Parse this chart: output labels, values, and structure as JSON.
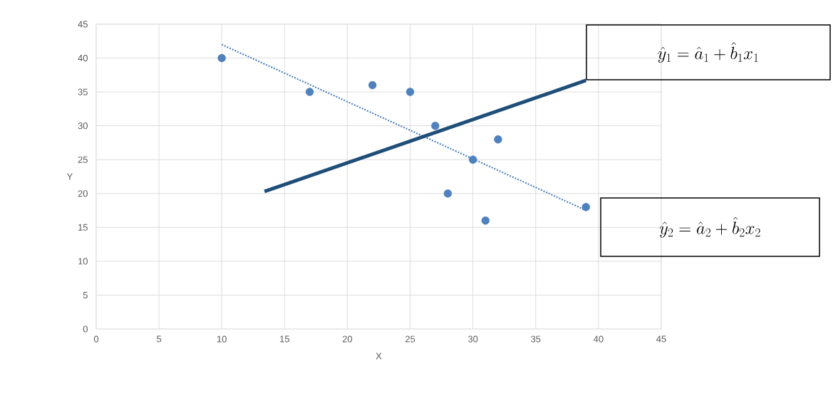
{
  "chart_data": {
    "type": "scatter",
    "xlabel": "X",
    "ylabel": "Y",
    "xlim": [
      0,
      45
    ],
    "ylim": [
      0,
      45
    ],
    "xticks": [
      0,
      5,
      10,
      15,
      20,
      25,
      30,
      35,
      40,
      45
    ],
    "yticks": [
      0,
      5,
      10,
      15,
      20,
      25,
      30,
      35,
      40,
      45
    ],
    "grid": true,
    "series": [
      {
        "color": "#4f81bd",
        "marker": "circle",
        "x": [
          10,
          17,
          22,
          25,
          27,
          28,
          30,
          31,
          32,
          39
        ],
        "values": [
          40,
          35,
          36,
          35,
          30,
          20,
          25,
          16,
          28,
          18
        ]
      },
      {
        "type": "line",
        "color": "#4f81bd",
        "line_style": "dotted",
        "marker": "none",
        "x": [
          10,
          38.9
        ],
        "values": [
          42,
          17.6
        ]
      },
      {
        "type": "line",
        "color": "#1f4e79",
        "line_style": "solid",
        "marker": "none",
        "x": [
          13.4,
          39
        ],
        "values": [
          20.3,
          36.7
        ]
      }
    ],
    "annotations": [
      "\\hat{y}_1 = \\hat{a}_1 + \\hat{b}_1 x_1",
      "\\hat{y}_2 = \\hat{a}_2 + \\hat{b}_2 x_2"
    ]
  }
}
